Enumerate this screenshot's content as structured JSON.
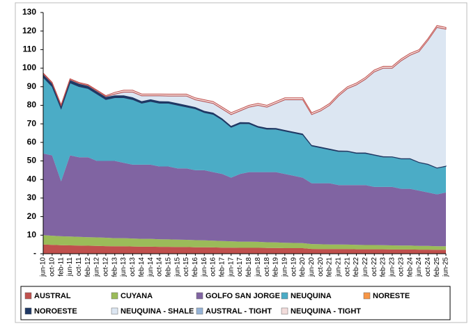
{
  "chart_data": {
    "type": "stacked-area",
    "categories": [
      "jun-10",
      "oct-10",
      "feb-11",
      "jun-11",
      "oct-11",
      "feb-12",
      "jun-12",
      "oct-12",
      "feb-13",
      "jun-13",
      "oct-13",
      "feb-14",
      "jun-14",
      "oct-14",
      "feb-15",
      "jun-15",
      "oct-15",
      "feb-16",
      "jun-16",
      "oct-16",
      "feb-17",
      "jun-17",
      "oct-17",
      "feb-18",
      "jun-18",
      "oct-18",
      "feb-19",
      "jun-19",
      "oct-19",
      "feb-20",
      "jun-20",
      "oct-20",
      "feb-21",
      "jun-21",
      "oct-21",
      "feb-22",
      "jun-22",
      "oct-22",
      "feb-23",
      "jun-23",
      "oct-23",
      "feb-24",
      "jun-24",
      "oct-24",
      "feb-25",
      "jun-25"
    ],
    "ylim": [
      0,
      130
    ],
    "yticks": [
      {
        "value": 0,
        "label": "-"
      },
      10,
      20,
      30,
      40,
      50,
      60,
      70,
      80,
      90,
      100,
      110,
      120,
      130
    ],
    "series": [
      {
        "name": "AUSTRAL",
        "color": "#c0504d",
        "values": [
          5.0,
          4.8,
          4.6,
          4.5,
          4.4,
          4.3,
          4.2,
          4.1,
          4.0,
          4.0,
          3.9,
          3.8,
          3.8,
          3.7,
          3.7,
          3.6,
          3.6,
          3.5,
          3.5,
          3.4,
          3.3,
          3.3,
          3.2,
          3.2,
          3.2,
          3.1,
          3.1,
          3.0,
          3.0,
          3.0,
          2.6,
          2.5,
          2.5,
          2.5,
          2.5,
          2.4,
          2.4,
          2.4,
          2.4,
          2.3,
          2.3,
          2.3,
          2.2,
          2.2,
          2.1,
          2.1
        ]
      },
      {
        "name": "CUYANA",
        "color": "#9bbb59",
        "values": [
          5.0,
          4.9,
          4.8,
          4.8,
          4.7,
          4.6,
          4.6,
          4.5,
          4.4,
          4.4,
          4.3,
          4.2,
          4.2,
          4.1,
          4.0,
          4.0,
          3.9,
          3.8,
          3.7,
          3.6,
          3.5,
          3.4,
          3.3,
          3.3,
          3.2,
          3.1,
          3.0,
          2.9,
          2.8,
          2.7,
          2.6,
          2.6,
          2.5,
          2.5,
          2.4,
          2.4,
          2.3,
          2.3,
          2.2,
          2.2,
          2.1,
          2.1,
          2.0,
          2.0,
          1.9,
          1.9
        ]
      },
      {
        "name": "GOLFO SAN JORGE",
        "color": "#8064a2",
        "values": [
          44.0,
          43.3,
          29.6,
          43.7,
          42.9,
          43.1,
          41.2,
          41.4,
          41.6,
          40.6,
          39.8,
          40.0,
          40.0,
          39.2,
          39.3,
          38.4,
          38.5,
          37.7,
          37.8,
          37.0,
          36.2,
          34.3,
          36.5,
          37.5,
          37.6,
          37.8,
          37.9,
          37.1,
          36.2,
          35.3,
          32.8,
          32.9,
          33.0,
          32.0,
          32.1,
          32.2,
          32.3,
          31.3,
          31.4,
          31.5,
          30.6,
          30.6,
          29.8,
          28.8,
          28.0,
          29.0
        ]
      },
      {
        "name": "NEUQUINA",
        "color": "#4bacc6",
        "values": [
          41,
          37,
          39,
          39,
          38,
          37,
          36,
          33,
          34,
          35,
          35,
          33,
          34,
          34,
          34,
          34,
          33,
          33,
          31,
          31,
          29,
          27,
          27,
          26,
          24,
          23,
          23,
          23,
          23,
          23,
          20,
          19,
          18,
          18,
          18,
          17,
          17,
          17,
          16,
          16,
          16,
          16,
          15,
          15,
          14,
          14
        ]
      },
      {
        "name": "NORESTE",
        "color": "#f79646",
        "values": [
          0.1,
          0.1,
          0.1,
          0.1,
          0.1,
          0.1,
          0.1,
          0.1,
          0.1,
          0.1,
          0.1,
          0.1,
          0.1,
          0.1,
          0.1,
          0.1,
          0.1,
          0.1,
          0.1,
          0.1,
          0.1,
          0.1,
          0.1,
          0.1,
          0.1,
          0.1,
          0.1,
          0.1,
          0.1,
          0.1,
          0.1,
          0.1,
          0.1,
          0.1,
          0.1,
          0.1,
          0.1,
          0.1,
          0.1,
          0.1,
          0.1,
          0.1,
          0.1,
          0.1,
          0.1,
          0.1
        ]
      },
      {
        "name": "NOROESTE",
        "color": "#1f3864",
        "values": [
          1.5,
          1.5,
          1.4,
          1.4,
          1.4,
          1.3,
          1.3,
          1.3,
          1.2,
          1.2,
          1.2,
          1.1,
          1.1,
          1.1,
          1.0,
          1.0,
          1.0,
          0.9,
          0.9,
          0.9,
          0.8,
          0.8,
          0.8,
          0.7,
          0.7,
          0.7,
          0.6,
          0.6,
          0.6,
          0.6,
          0.5,
          0.5,
          0.5,
          0.5,
          0.4,
          0.4,
          0.4,
          0.4,
          0.4,
          0.3,
          0.3,
          0.3,
          0.3,
          0.3,
          0.3,
          0.3
        ]
      },
      {
        "name": "NEUQUINA - SHALE",
        "color": "#dce6f2",
        "values": [
          0,
          0,
          0,
          0,
          0,
          0,
          0,
          0,
          0.4,
          1.5,
          2.5,
          2.6,
          1.6,
          2.6,
          2.6,
          3.6,
          4.6,
          3.7,
          4.7,
          4.7,
          4.8,
          5.8,
          5.8,
          7.9,
          10.9,
          10.9,
          13.0,
          16.0,
          17.0,
          18.0,
          16.1,
          19.1,
          23.1,
          29.1,
          33.2,
          36.2,
          39.2,
          44.2,
          47.2,
          47.3,
          52.3,
          55.3,
          59.3,
          66.3,
          75.3,
          73.3
        ]
      },
      {
        "name": "AUSTRAL -  TIGHT",
        "color": "#95b3d7",
        "values": [
          0.3,
          0.3,
          0.3,
          0.3,
          0.3,
          0.3,
          0.3,
          0.3,
          0.3,
          0.3,
          0.3,
          0.3,
          0.3,
          0.3,
          0.3,
          0.3,
          0.3,
          0.3,
          0.3,
          0.3,
          0.3,
          0.3,
          0.3,
          0.3,
          0.3,
          0.3,
          0.3,
          0.3,
          0.3,
          0.3,
          0.3,
          0.3,
          0.3,
          0.3,
          0.3,
          0.3,
          0.3,
          0.3,
          0.3,
          0.3,
          0.3,
          0.3,
          0.3,
          0.3,
          0.3,
          0.3
        ]
      },
      {
        "name": "NEUQUINA - TIGHT",
        "color": "#f2dcdb",
        "values": [
          0.5,
          0.5,
          0.5,
          0.5,
          0.5,
          0.5,
          0.5,
          0.5,
          1.0,
          1.0,
          1.0,
          1.0,
          1.0,
          1.0,
          1.0,
          1.0,
          1.0,
          1.0,
          1.0,
          1.0,
          1.0,
          1.0,
          1.0,
          1.0,
          1.0,
          1.0,
          1.0,
          1.0,
          1.0,
          1.0,
          1.0,
          1.0,
          1.0,
          1.0,
          1.0,
          1.0,
          1.0,
          1.0,
          1.0,
          1.0,
          1.0,
          1.0,
          1.0,
          1.0,
          1.0,
          1.0
        ]
      }
    ]
  }
}
